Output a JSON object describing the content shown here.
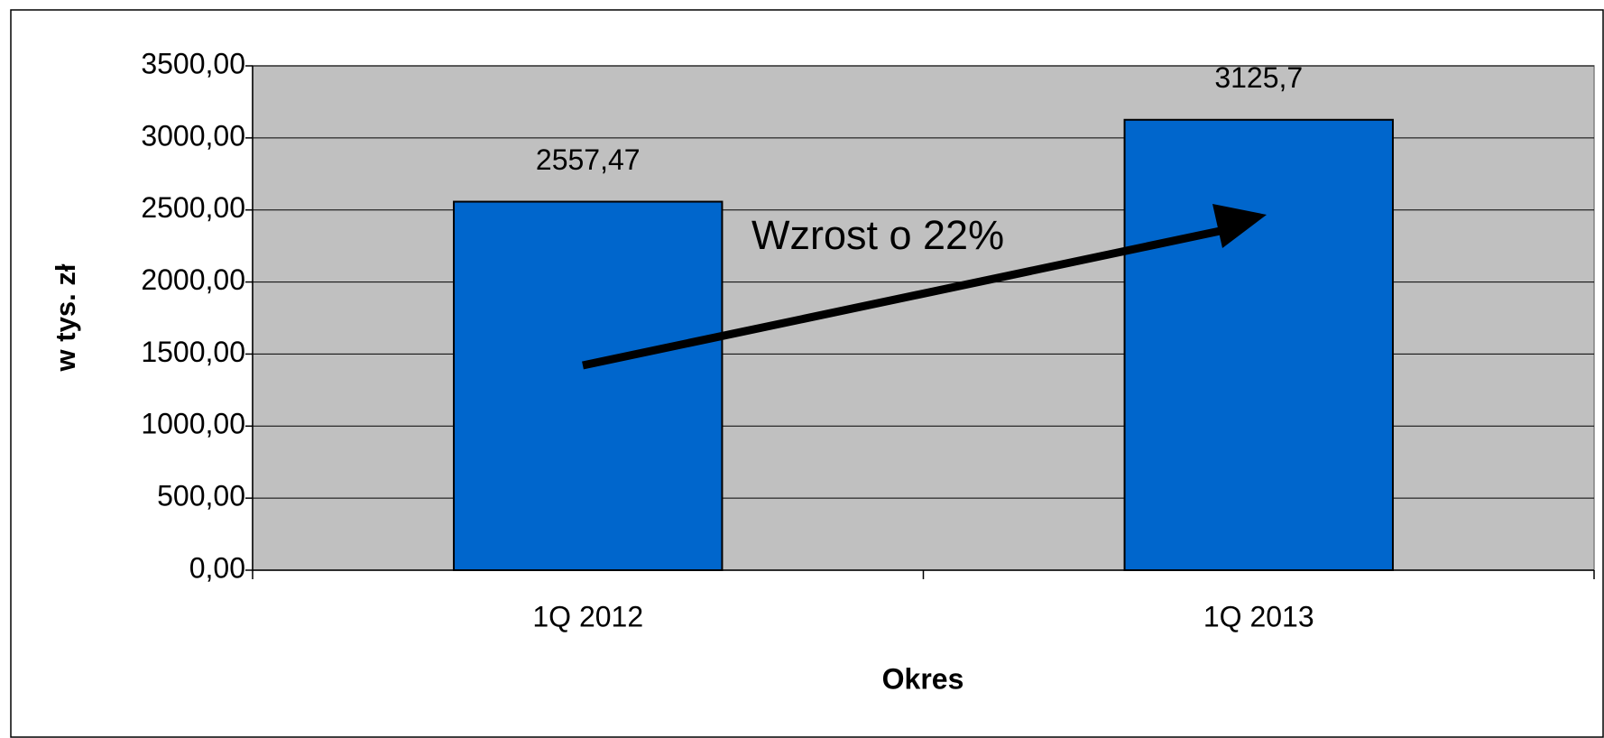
{
  "chart_data": {
    "type": "bar",
    "categories": [
      "1Q 2012",
      "1Q 2013"
    ],
    "values": [
      2557.47,
      3125.7
    ],
    "value_labels": [
      "2557,47",
      "3125,7"
    ],
    "color": "#0066cc",
    "ylabel": "w tys. zł",
    "xlabel": "Okres",
    "annotation": "Wzrost o 22%",
    "ylim": [
      0,
      3500
    ],
    "yticks": [
      {
        "value": 0,
        "label": "0,00"
      },
      {
        "value": 500,
        "label": "500,00"
      },
      {
        "value": 1000,
        "label": "1000,00"
      },
      {
        "value": 1500,
        "label": "1500,00"
      },
      {
        "value": 2000,
        "label": "2000,00"
      },
      {
        "value": 2500,
        "label": "2500,00"
      },
      {
        "value": 3000,
        "label": "3000,00"
      },
      {
        "value": 3500,
        "label": "3500,00"
      }
    ],
    "grid": true
  }
}
